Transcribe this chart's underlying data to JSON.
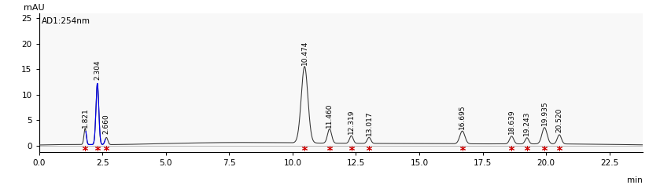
{
  "title": "AD1:254nm",
  "ylabel_rotated": "mAU",
  "xlabel": "min",
  "xlim": [
    0.0,
    23.8
  ],
  "ylim": [
    -1.2,
    26
  ],
  "yticks": [
    0,
    5,
    10,
    15,
    20,
    25
  ],
  "xticks": [
    0.0,
    2.5,
    5.0,
    7.5,
    10.0,
    12.5,
    15.0,
    17.5,
    20.0,
    22.5
  ],
  "xtick_labels": [
    "0.0",
    "2.5",
    "5.0",
    "7.5",
    "10.0",
    "12.5",
    "15.0",
    "17.5",
    "20.0",
    "22.5"
  ],
  "peaks": [
    {
      "rt": 1.821,
      "height": 3.2,
      "sigma": 0.045,
      "label": "1.821",
      "blue": false
    },
    {
      "rt": 2.304,
      "height": 12.0,
      "sigma": 0.055,
      "label": "2.304",
      "blue": true
    },
    {
      "rt": 2.66,
      "height": 1.4,
      "sigma": 0.055,
      "label": "2.660",
      "blue": false
    },
    {
      "rt": 10.474,
      "height": 15.0,
      "sigma": 0.13,
      "label": "10.474",
      "blue": false
    },
    {
      "rt": 11.46,
      "height": 2.8,
      "sigma": 0.08,
      "label": "11.460",
      "blue": false
    },
    {
      "rt": 12.319,
      "height": 1.5,
      "sigma": 0.07,
      "label": "12.319",
      "blue": false
    },
    {
      "rt": 13.017,
      "height": 1.2,
      "sigma": 0.07,
      "label": "13.017",
      "blue": false
    },
    {
      "rt": 16.695,
      "height": 2.5,
      "sigma": 0.1,
      "label": "16.695",
      "blue": false
    },
    {
      "rt": 18.639,
      "height": 1.5,
      "sigma": 0.08,
      "label": "18.639",
      "blue": false
    },
    {
      "rt": 19.243,
      "height": 1.2,
      "sigma": 0.07,
      "label": "19.243",
      "blue": false
    },
    {
      "rt": 19.935,
      "height": 3.2,
      "sigma": 0.1,
      "label": "19.935",
      "blue": false
    },
    {
      "rt": 20.52,
      "height": 1.8,
      "sigma": 0.08,
      "label": "20.520",
      "blue": false
    }
  ],
  "label_y_offsets": {
    "1.821": 3.5,
    "2.304": 12.8,
    "2.660": 2.2,
    "10.474": 15.8,
    "11.460": 3.5,
    "12.319": 2.2,
    "13.017": 1.9,
    "16.695": 3.2,
    "18.639": 2.2,
    "19.243": 1.9,
    "19.935": 3.9,
    "20.520": 2.5
  },
  "background_color": "#f8f8f8",
  "line_color_main": "#333333",
  "line_color_blue": "#0000ee",
  "marker_color": "#cc0000",
  "marker_y": -0.45,
  "marker_size": 5,
  "fontsize_label": 6.5,
  "fontsize_axis": 7.5,
  "fontsize_title": 7.5,
  "fontsize_mau": 8
}
